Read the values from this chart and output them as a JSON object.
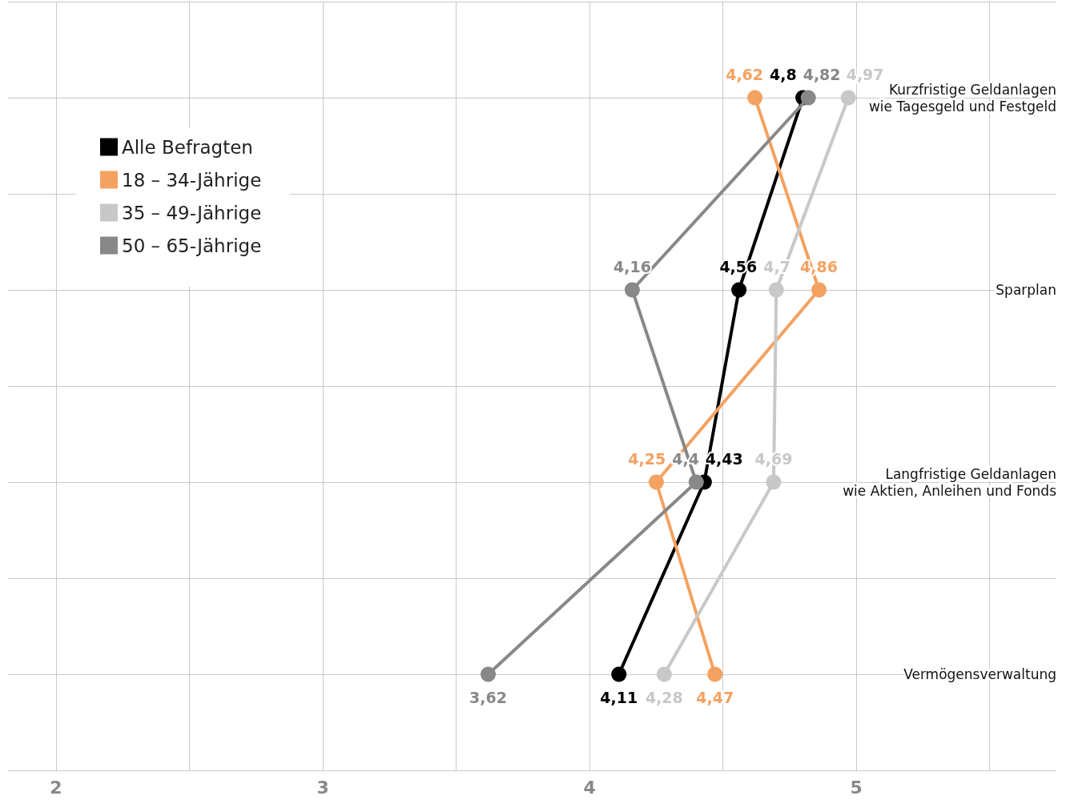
{
  "chart_data": {
    "type": "line",
    "orientation": "horizontal",
    "categories": [
      "Kurzfristige Geldanlagen wie Tagesgeld und Festgeld",
      "Sparplan",
      "Langfristige Geldanlagen\nwie Aktien, Anleihen und Fonds",
      "Vermögensverwaltung"
    ],
    "series": [
      {
        "name": "Alle Befragten",
        "color": "#000000",
        "values": [
          4.8,
          4.56,
          4.43,
          4.11
        ],
        "value_labels": [
          "4,8",
          "4,56",
          "4,43",
          "4,11"
        ]
      },
      {
        "name": "18 – 34-Jährige",
        "color": "#f4a261",
        "values": [
          4.62,
          4.86,
          4.25,
          4.47
        ],
        "value_labels": [
          "4,62",
          "4,86",
          "4,25",
          "4,47"
        ]
      },
      {
        "name": "35 – 49-Jährige",
        "color": "#c8c8c8",
        "values": [
          4.97,
          4.7,
          4.69,
          4.28
        ],
        "value_labels": [
          "4,97",
          "4,7",
          "4,69",
          "4,28"
        ]
      },
      {
        "name": "50 – 65-Jährige",
        "color": "#888888",
        "values": [
          4.82,
          4.16,
          4.4,
          3.62
        ],
        "value_labels": [
          "4,82",
          "4,16",
          "4,4",
          "3,62"
        ]
      }
    ],
    "xlim": [
      1.82,
      5.75
    ],
    "xticks": [
      2,
      {
        "value": 2.5,
        "label": null
      },
      3,
      {
        "value": 3.5,
        "label": null
      },
      4,
      {
        "value": 4.5,
        "label": null
      },
      5,
      {
        "value": 5.5,
        "label": null
      }
    ],
    "grid": true,
    "legend": "top left",
    "marker": "circle",
    "line_style": "solid"
  }
}
